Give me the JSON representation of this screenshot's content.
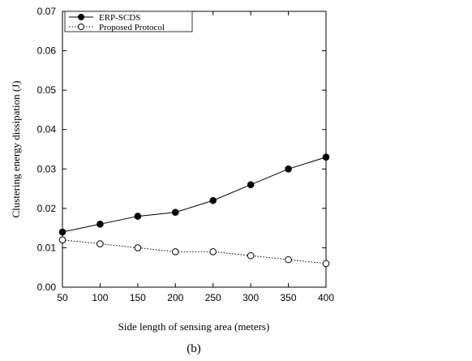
{
  "chart_data": {
    "type": "line",
    "caption": "(b)",
    "xlabel": "Side length of sensing area (meters)",
    "ylabel": "Clustering energy dissipation (J)",
    "xlim": [
      50,
      400
    ],
    "ylim": [
      0,
      0.07
    ],
    "x_ticks": [
      "50",
      "100",
      "150",
      "200",
      "250",
      "300",
      "350",
      "400"
    ],
    "y_ticks": [
      "0.00",
      "0.01",
      "0.02",
      "0.03",
      "0.04",
      "0.05",
      "0.06",
      "0.07"
    ],
    "x": [
      50,
      100,
      150,
      200,
      250,
      300,
      350,
      400
    ],
    "series": [
      {
        "name": "ERP-SCDS",
        "marker": "filled-circle",
        "line": "solid",
        "color": "#000000",
        "values": [
          0.014,
          0.016,
          0.018,
          0.019,
          0.022,
          0.026,
          0.03,
          0.033
        ]
      },
      {
        "name": "Proposed Protocol",
        "marker": "open-circle",
        "line": "dotted",
        "color": "#000000",
        "values": [
          0.012,
          0.011,
          0.01,
          0.009,
          0.009,
          0.008,
          0.007,
          0.006
        ]
      }
    ],
    "legend_position": "top-left",
    "grid": false
  }
}
